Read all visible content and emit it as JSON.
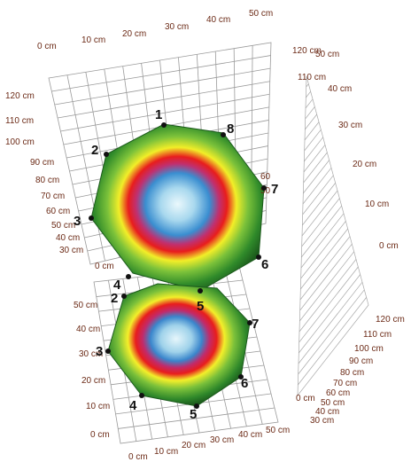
{
  "upper_chart": {
    "top_axis": [
      "0 cm",
      "10 cm",
      "20 cm",
      "30 cm",
      "40 cm",
      "50 cm"
    ],
    "left_axis": [
      "120 cm",
      "110 cm",
      "100 cm",
      "90 cm",
      "80 cm",
      "70 cm",
      "60 cm",
      "50 cm",
      "40 cm",
      "30 cm",
      "0 cm"
    ],
    "side_axis_top": [
      "120 cm",
      "110 cm",
      "50 cm",
      "40 cm",
      "30 cm",
      "20 cm",
      "10 cm",
      "0 cm"
    ],
    "side_axis_right": [
      "60",
      "50"
    ],
    "points": [
      "1",
      "2",
      "3",
      "4",
      "5",
      "6",
      "7",
      "8"
    ]
  },
  "lower_chart": {
    "left_axis": [
      "50 cm",
      "40 cm",
      "30 cm",
      "20 cm",
      "10 cm",
      "0 cm"
    ],
    "bottom_axis": [
      "0 cm",
      "10 cm",
      "20 cm",
      "30 cm",
      "40 cm",
      "50 cm"
    ],
    "side_axis": [
      "120 cm",
      "110 cm",
      "100 cm",
      "90 cm",
      "80 cm",
      "70 cm",
      "60 cm",
      "50 cm",
      "40 cm",
      "30 cm",
      "0 cm"
    ],
    "points": [
      "2",
      "3",
      "4",
      "5",
      "6",
      "7"
    ]
  }
}
